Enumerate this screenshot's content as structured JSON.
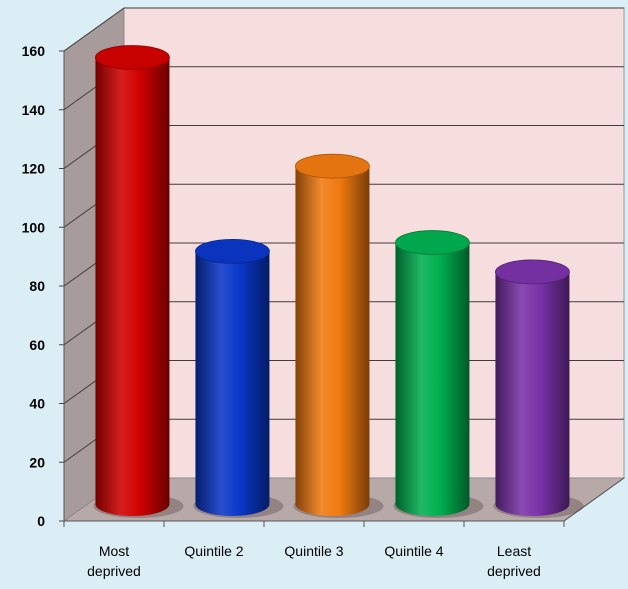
{
  "colors": {
    "background": "#dbeef6",
    "plot_back_wall": "#f6dede",
    "side_wall": "#a89b9b",
    "floor": "#b8a9a9",
    "gridline": "#3d3d3d",
    "axis_text": "#000000"
  },
  "chart_data": {
    "type": "bar",
    "style": "3d-cylinder",
    "title": "",
    "xlabel": "",
    "ylabel": "",
    "ylim": [
      0,
      160
    ],
    "yticks": [
      0,
      20,
      40,
      60,
      80,
      100,
      120,
      140,
      160
    ],
    "grid": true,
    "legend": "none",
    "categories": [
      "Most deprived",
      "Quintile 2",
      "Quintile 3",
      "Quintile 4",
      "Least deprived"
    ],
    "category_lines": [
      [
        "Most",
        "deprived"
      ],
      [
        "Quintile 2"
      ],
      [
        "Quintile 3"
      ],
      [
        "Quintile 4"
      ],
      [
        "Least",
        "deprived"
      ]
    ],
    "values": [
      152,
      86,
      115,
      89,
      79
    ],
    "bar_colors": [
      "#d10000",
      "#0a37c8",
      "#f07a10",
      "#00b050",
      "#7a31a8"
    ]
  }
}
